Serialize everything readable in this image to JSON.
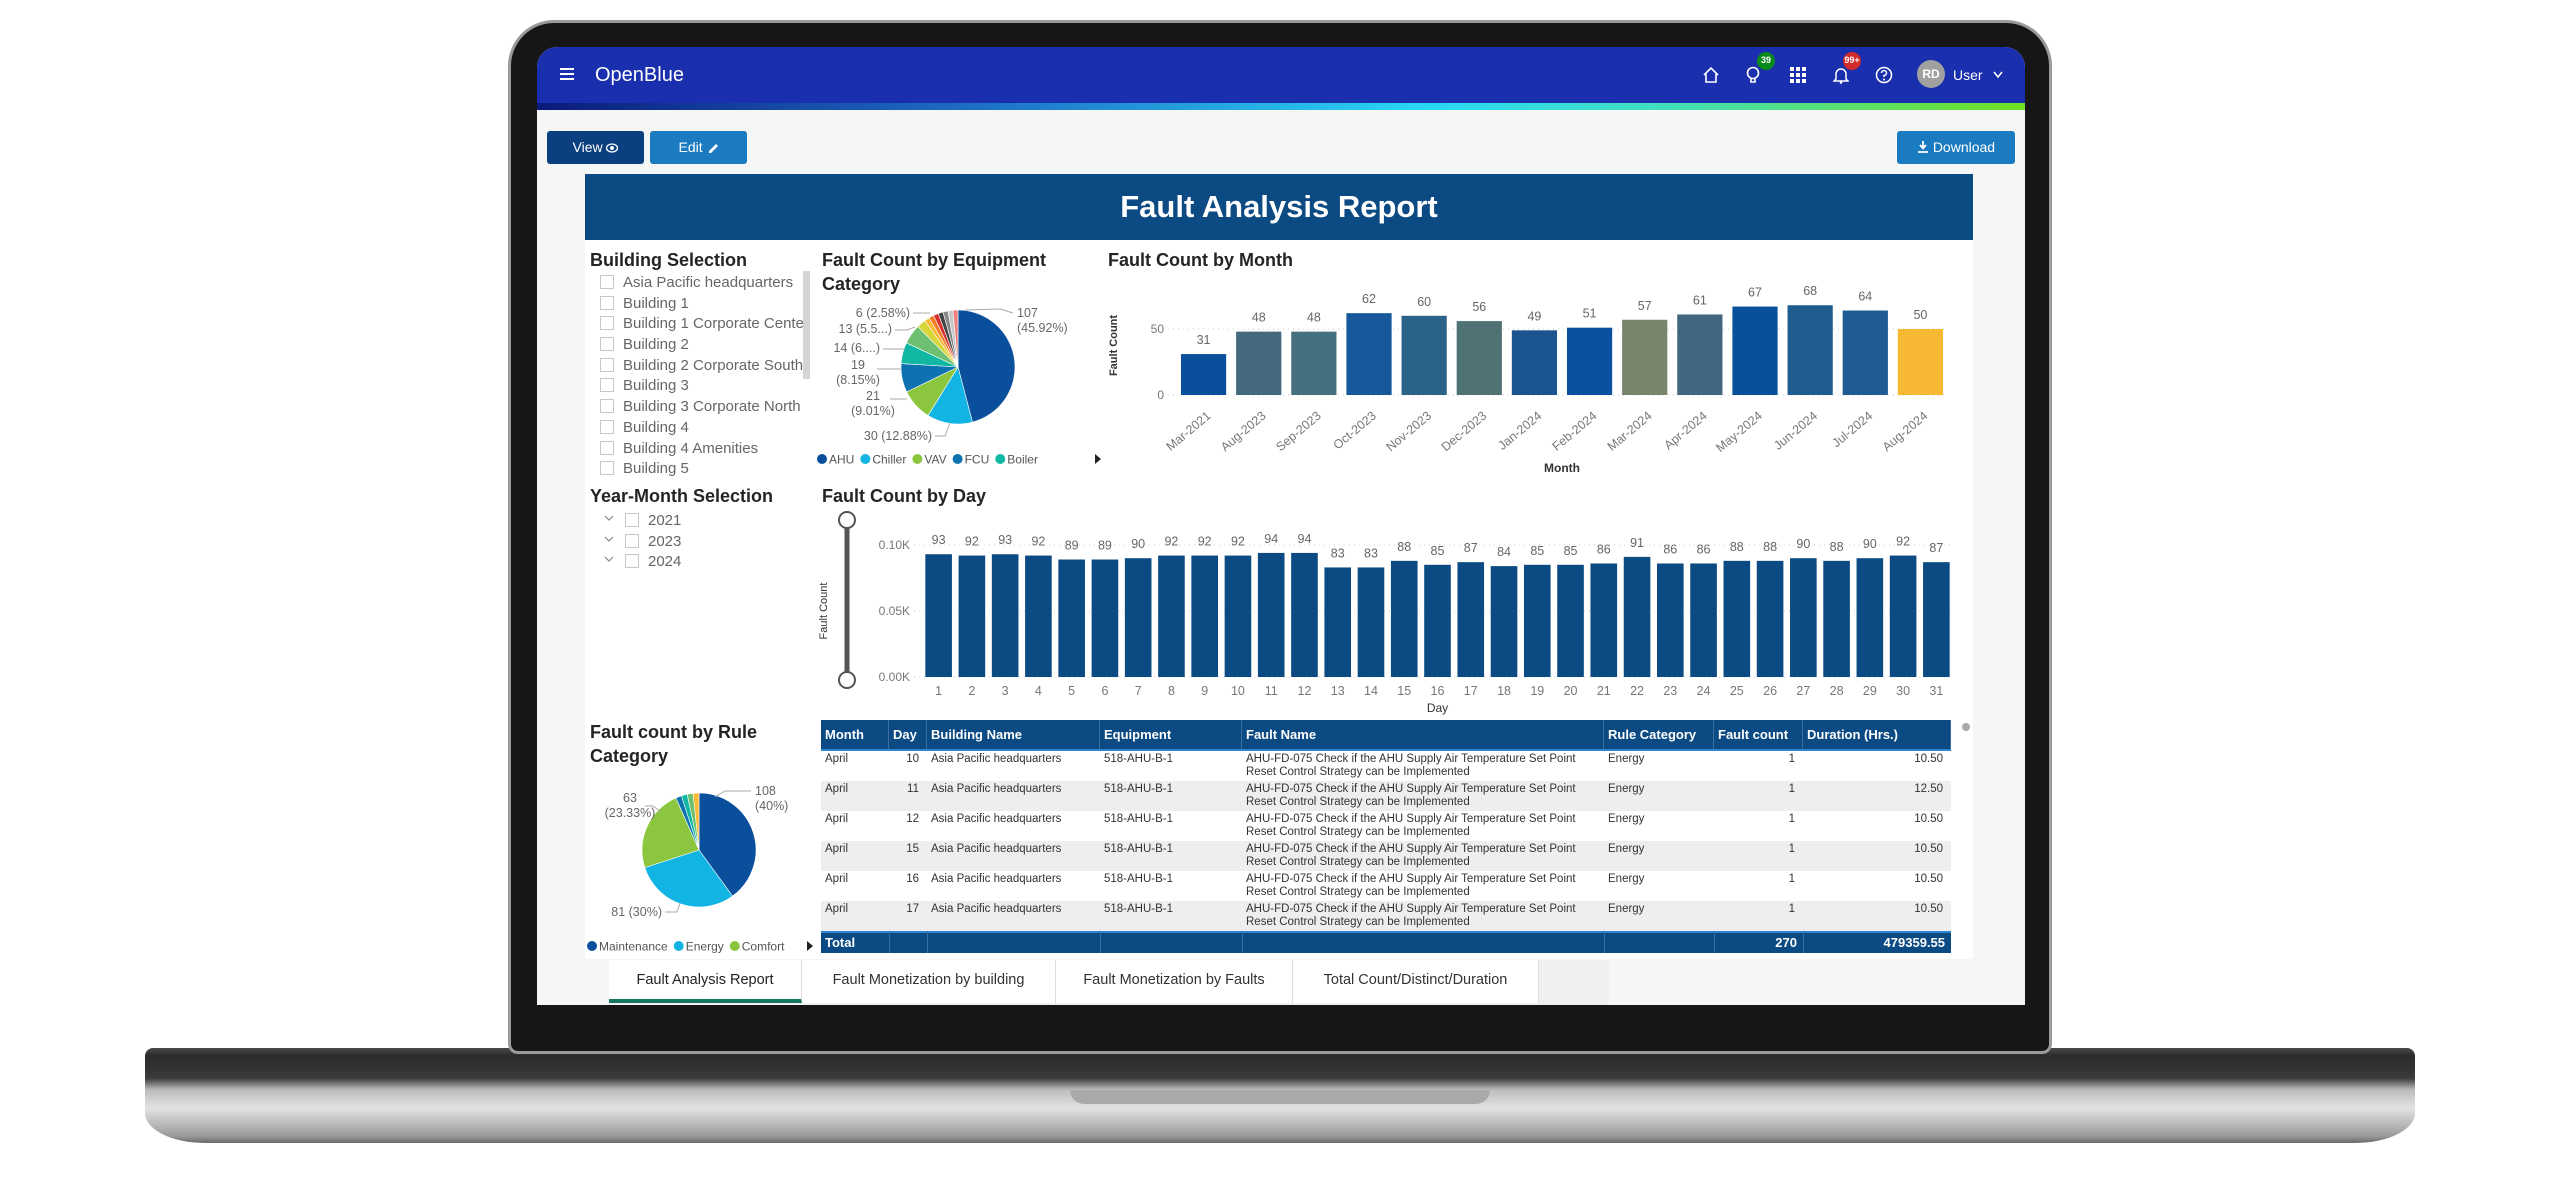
{
  "app": {
    "title": "OpenBlue",
    "user_initials": "RD",
    "user_label": "User",
    "ideas_badge": "39",
    "notif_badge": "99+",
    "icons": [
      "menu-icon",
      "home-icon",
      "lightbulb-icon",
      "apps-grid-icon",
      "bell-icon",
      "help-icon",
      "chevron-down-icon"
    ]
  },
  "toolbar": {
    "view_label": "View",
    "edit_label": "Edit",
    "download_label": "Download"
  },
  "colors": {
    "header": "#1a2fae",
    "banner": "#0b4a82",
    "active_tab": "#17785f",
    "day_bars": "#0b4a82"
  },
  "report": {
    "title": "Fault Analysis Report"
  },
  "building_selection": {
    "title": "Building Selection",
    "items": [
      "Asia Pacific headquarters",
      "Building 1",
      "Building 1 Corporate Center",
      "Building 2",
      "Building 2 Corporate South",
      "Building 3",
      "Building 3 Corporate North",
      "Building 4",
      "Building 4 Amenities",
      "Building 5"
    ]
  },
  "year_month": {
    "title": "Year-Month Selection",
    "items": [
      "2021",
      "2023",
      "2024"
    ]
  },
  "chart_data": [
    {
      "type": "pie",
      "title": "Fault Count by Equipment Category",
      "legend": [
        "AHU",
        "Chiller",
        "VAV",
        "FCU",
        "Boiler"
      ],
      "legend_placement": "bottom",
      "slices": [
        {
          "name": "AHU",
          "value": 107,
          "label": "107",
          "label2": "(45.92%)",
          "color": "#0a4f9c",
          "pct": 45.92
        },
        {
          "name": "Chiller",
          "value": 30,
          "label": "30 (12.88%)",
          "color": "#12b4e3",
          "pct": 12.88
        },
        {
          "name": "VAV",
          "value": 21,
          "label": "21",
          "label2": "(9.01%)",
          "color": "#8cc63f",
          "pct": 9.01
        },
        {
          "name": "FCU",
          "value": 19,
          "label": "19",
          "label2": "(8.15%)",
          "color": "#0e72b0",
          "pct": 8.15
        },
        {
          "name": "Boiler",
          "value": 14,
          "label": "14 (6....)",
          "color": "#10b8a4",
          "pct": 6.01
        },
        {
          "value": 13,
          "label": "13 (5.5...)",
          "color": "#6cc070",
          "pct": 5.58
        },
        {
          "value": 6,
          "label": "6 (2.58%)",
          "color": "#d9d63a",
          "pct": 2.58
        }
      ],
      "minor_colors": [
        "#f9b934",
        "#f07d22",
        "#d83030",
        "#444444",
        "#888888",
        "#c7c7c7",
        "#f08080"
      ]
    },
    {
      "type": "bar",
      "title": "Fault Count by Month",
      "xlabel": "Month",
      "ylabel": "Fault Count",
      "yticks": [
        0,
        50
      ],
      "ylim": [
        0,
        75
      ],
      "grid": true,
      "categories": [
        "Mar-2021",
        "Aug-2023",
        "Sep-2023",
        "Oct-2023",
        "Nov-2023",
        "Dec-2023",
        "Jan-2024",
        "Feb-2024",
        "Mar-2024",
        "Apr-2024",
        "May-2024",
        "Jun-2024",
        "Jul-2024",
        "Aug-2024"
      ],
      "values": [
        31,
        48,
        48,
        62,
        60,
        56,
        49,
        51,
        57,
        61,
        67,
        68,
        64,
        50
      ],
      "colors": [
        "#0a4f9c",
        "#44697f",
        "#45707d",
        "#16589a",
        "#2b6287",
        "#4f7375",
        "#1a5592",
        "#0a51a0",
        "#78846c",
        "#40677f",
        "#08519a",
        "#1f5c8f",
        "#1f5c93",
        "#f7b934"
      ]
    },
    {
      "type": "bar",
      "title": "Fault Count by Day",
      "xlabel": "Day",
      "ylabel": "Fault Count",
      "yticks": [
        "0.00K",
        "0.05K",
        "0.10K"
      ],
      "ylim": [
        0,
        100
      ],
      "grid": true,
      "categories": [
        "1",
        "2",
        "3",
        "4",
        "5",
        "6",
        "7",
        "8",
        "9",
        "10",
        "11",
        "12",
        "13",
        "14",
        "15",
        "16",
        "17",
        "18",
        "19",
        "20",
        "21",
        "22",
        "23",
        "24",
        "25",
        "26",
        "27",
        "28",
        "29",
        "30",
        "31"
      ],
      "values": [
        93,
        92,
        93,
        92,
        89,
        89,
        90,
        92,
        92,
        92,
        94,
        94,
        83,
        83,
        88,
        85,
        87,
        84,
        85,
        85,
        86,
        91,
        86,
        86,
        88,
        88,
        90,
        88,
        90,
        92,
        87
      ]
    },
    {
      "type": "pie",
      "title": "Fault count by Rule Category",
      "legend": [
        "Maintenance",
        "Energy",
        "Comfort"
      ],
      "legend_placement": "bottom",
      "slices": [
        {
          "name": "Maintenance",
          "value": 108,
          "label": "108",
          "label2": "(40%)",
          "color": "#0a4f9c",
          "pct": 40
        },
        {
          "name": "Energy",
          "value": 81,
          "label": "81 (30%)",
          "color": "#12b4e3",
          "pct": 30
        },
        {
          "name": "Comfort",
          "value": 63,
          "label": "63",
          "label2": "(23.33%)",
          "color": "#8cc63f",
          "pct": 23.33
        }
      ],
      "minor_colors": [
        "#0e72b0",
        "#10b8a4",
        "#6cc070",
        "#f9b934"
      ]
    }
  ],
  "table": {
    "columns": [
      "Month",
      "Day",
      "Building Name",
      "Equipment",
      "Fault Name",
      "Rule Category",
      "Fault count",
      "Duration (Hrs.)"
    ],
    "rows": [
      [
        "April",
        "10",
        "Asia Pacific headquarters",
        "518-AHU-B-1",
        "AHU-FD-075 Check if the AHU Supply Air Temperature Set Point Reset Control Strategy can be Implemented",
        "Energy",
        "1",
        "10.50"
      ],
      [
        "April",
        "11",
        "Asia Pacific headquarters",
        "518-AHU-B-1",
        "AHU-FD-075 Check if the AHU Supply Air Temperature Set Point Reset Control Strategy can be Implemented",
        "Energy",
        "1",
        "12.50"
      ],
      [
        "April",
        "12",
        "Asia Pacific headquarters",
        "518-AHU-B-1",
        "AHU-FD-075 Check if the AHU Supply Air Temperature Set Point Reset Control Strategy can be Implemented",
        "Energy",
        "1",
        "10.50"
      ],
      [
        "April",
        "15",
        "Asia Pacific headquarters",
        "518-AHU-B-1",
        "AHU-FD-075 Check if the AHU Supply Air Temperature Set Point Reset Control Strategy can be Implemented",
        "Energy",
        "1",
        "10.50"
      ],
      [
        "April",
        "16",
        "Asia Pacific headquarters",
        "518-AHU-B-1",
        "AHU-FD-075 Check if the AHU Supply Air Temperature Set Point Reset Control Strategy can be Implemented",
        "Energy",
        "1",
        "10.50"
      ],
      [
        "April",
        "17",
        "Asia Pacific headquarters",
        "518-AHU-B-1",
        "AHU-FD-075 Check if the AHU Supply Air Temperature Set Point Reset Control Strategy can be Implemented",
        "Energy",
        "1",
        "10.50"
      ]
    ],
    "total": {
      "label": "Total",
      "fault_count": "270",
      "duration": "479359.55"
    }
  },
  "tabs": [
    {
      "label": "Fault Analysis Report",
      "active": true
    },
    {
      "label": "Fault Monetization by building"
    },
    {
      "label": "Fault Monetization by Faults"
    },
    {
      "label": "Total Count/Distinct/Duration"
    }
  ]
}
